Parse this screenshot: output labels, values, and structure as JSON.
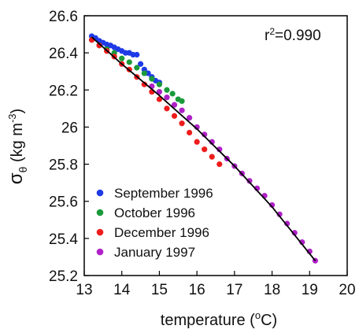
{
  "chart_data": {
    "type": "scatter",
    "xlabel": "temperature (oC)",
    "ylabel": "σθ (kg m-3)",
    "xlim": [
      13,
      20
    ],
    "ylim": [
      25.2,
      26.6
    ],
    "x_ticks": [
      13,
      14,
      15,
      16,
      17,
      18,
      19,
      20
    ],
    "y_ticks": [
      25.2,
      25.4,
      25.6,
      25.8,
      26,
      26.2,
      26.4,
      26.6
    ],
    "x_tick_labels": [
      "13",
      "14",
      "15",
      "16",
      "17",
      "18",
      "19",
      "20"
    ],
    "y_tick_labels": [
      "25.2",
      "25.4",
      "25.6",
      "25.8",
      "26",
      "26.2",
      "26.4",
      "26.6"
    ],
    "grid": false,
    "legend_position": "bottom-left",
    "annotation": {
      "base": "r",
      "sup": "2",
      "rest": "=0.990"
    },
    "axis_labels": {
      "x_main": "temperature (",
      "x_sup": "o",
      "x_rest": "C)",
      "y_sigma": "σ",
      "y_sub": "θ",
      "y_main": " (kg m",
      "y_sup": "-3",
      "y_rest": ")"
    },
    "fit_line": {
      "x": [
        13.2,
        14,
        15,
        16,
        17,
        18,
        19.15
      ],
      "y": [
        26.485,
        26.34,
        26.17,
        25.99,
        25.79,
        25.57,
        25.28
      ],
      "color": "#000000"
    },
    "series": [
      {
        "name": "September 1996",
        "color": "#1f3be6",
        "points": [
          [
            13.2,
            26.49
          ],
          [
            13.3,
            26.48
          ],
          [
            13.4,
            26.465
          ],
          [
            13.5,
            26.455
          ],
          [
            13.6,
            26.445
          ],
          [
            13.7,
            26.44
          ],
          [
            13.8,
            26.43
          ],
          [
            13.9,
            26.42
          ],
          [
            14.0,
            26.41
          ],
          [
            14.1,
            26.4
          ],
          [
            14.2,
            26.4
          ],
          [
            14.3,
            26.39
          ],
          [
            14.4,
            26.39
          ],
          [
            14.5,
            26.34
          ],
          [
            14.6,
            26.31
          ],
          [
            14.7,
            26.29
          ],
          [
            14.8,
            26.27
          ],
          [
            14.9,
            26.25
          ],
          [
            15.0,
            26.24
          ]
        ]
      },
      {
        "name": "October 1996",
        "color": "#1a9a3a",
        "points": [
          [
            13.2,
            26.47
          ],
          [
            13.4,
            26.44
          ],
          [
            13.6,
            26.42
          ],
          [
            13.8,
            26.4
          ],
          [
            14.0,
            26.37
          ],
          [
            14.2,
            26.35
          ],
          [
            14.4,
            26.32
          ],
          [
            14.6,
            26.29
          ],
          [
            14.8,
            26.26
          ],
          [
            15.0,
            26.23
          ],
          [
            15.2,
            26.2
          ],
          [
            15.35,
            26.18
          ],
          [
            15.5,
            26.15
          ],
          [
            15.6,
            26.14
          ]
        ]
      },
      {
        "name": "December 1996",
        "color": "#ee1c1c",
        "points": [
          [
            13.2,
            26.47
          ],
          [
            13.4,
            26.44
          ],
          [
            13.6,
            26.41
          ],
          [
            13.8,
            26.38
          ],
          [
            14.0,
            26.34
          ],
          [
            14.2,
            26.31
          ],
          [
            14.4,
            26.27
          ],
          [
            14.6,
            26.23
          ],
          [
            14.8,
            26.19
          ],
          [
            15.0,
            26.15
          ],
          [
            15.2,
            26.1
          ],
          [
            15.4,
            26.06
          ],
          [
            15.6,
            26.02
          ],
          [
            15.8,
            25.97
          ],
          [
            16.0,
            25.92
          ],
          [
            16.2,
            25.88
          ],
          [
            16.4,
            25.84
          ],
          [
            16.6,
            25.8
          ]
        ]
      },
      {
        "name": "January 1997",
        "color": "#b020c8",
        "points": [
          [
            14.8,
            26.22
          ],
          [
            15.0,
            26.19
          ],
          [
            15.2,
            26.16
          ],
          [
            15.4,
            26.12
          ],
          [
            15.6,
            26.09
          ],
          [
            15.8,
            26.05
          ],
          [
            16.0,
            26.0
          ],
          [
            16.2,
            25.96
          ],
          [
            16.4,
            25.92
          ],
          [
            16.6,
            25.88
          ],
          [
            16.8,
            25.83
          ],
          [
            17.0,
            25.79
          ],
          [
            17.2,
            25.75
          ],
          [
            17.4,
            25.71
          ],
          [
            17.6,
            25.67
          ],
          [
            17.8,
            25.63
          ],
          [
            18.0,
            25.58
          ],
          [
            18.2,
            25.53
          ],
          [
            18.4,
            25.48
          ],
          [
            18.6,
            25.43
          ],
          [
            18.8,
            25.38
          ],
          [
            19.0,
            25.33
          ],
          [
            19.15,
            25.28
          ]
        ]
      }
    ]
  }
}
